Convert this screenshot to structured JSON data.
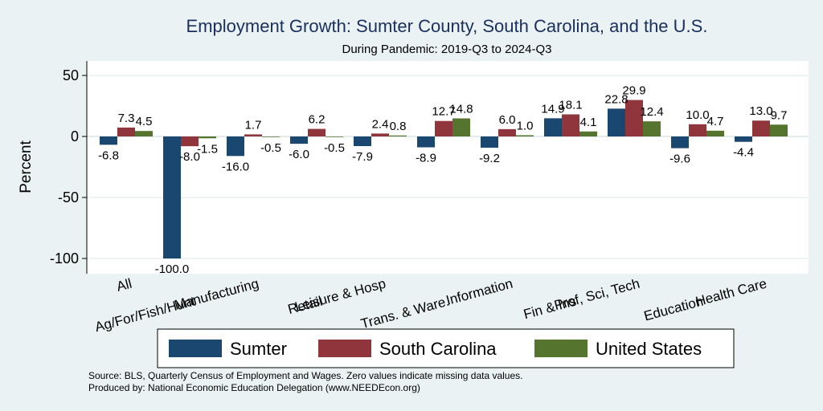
{
  "chart_data": {
    "type": "bar",
    "title": "Employment Growth: Sumter County, South Carolina, and the U.S.",
    "subtitle": "During Pandemic: 2019-Q3 to 2024-Q3",
    "ylabel": "Percent",
    "ylim": [
      -110,
      60
    ],
    "yticks": [
      50,
      0,
      -50,
      -100
    ],
    "grid": true,
    "legend_position": "bottom",
    "categories": [
      "All",
      "Ag/For/Fish/Hunt",
      "Manufacturing",
      "Retail",
      "Leisure & Hosp",
      "Trans. & Ware.",
      "Information",
      "Fin & Ins",
      "Prof, Sci, Tech",
      "Education",
      "Health Care"
    ],
    "series": [
      {
        "name": "Sumter",
        "color": "#1a476f",
        "values": [
          -6.8,
          -100.0,
          -16.0,
          -6.0,
          -7.9,
          -8.9,
          -9.2,
          14.9,
          22.8,
          -9.6,
          -4.4
        ],
        "labels": [
          "-6.8",
          "-100.0",
          "-16.0",
          "-6.0",
          "-7.9",
          "-8.9",
          "-9.2",
          "14.9",
          "22.8",
          "-9.6",
          "-4.4"
        ]
      },
      {
        "name": "South Carolina",
        "color": "#90353b",
        "values": [
          7.3,
          -8.0,
          1.7,
          6.2,
          2.4,
          12.7,
          6.0,
          18.1,
          29.9,
          10.0,
          13.0
        ],
        "labels": [
          "7.3",
          "-8.0",
          "1.7",
          "6.2",
          "2.4",
          "12.7",
          "6.0",
          "18.1",
          "29.9",
          "10.0",
          "13.0"
        ]
      },
      {
        "name": "United States",
        "color": "#55752f",
        "values": [
          4.5,
          -1.5,
          -0.5,
          -0.5,
          0.8,
          14.8,
          1.0,
          4.1,
          12.4,
          4.7,
          9.7
        ],
        "labels": [
          "4.5",
          "-1.5",
          "-0.5",
          "-0.5",
          "0.8",
          "14.8",
          "1.0",
          "4.1",
          "12.4",
          "4.7",
          "9.7"
        ]
      }
    ]
  },
  "notes": {
    "source": "Source: BLS, Quarterly Census of Employment and Wages. Zero values indicate missing data values.",
    "produced_by": "Produced by: National Economic Education Delegation (www.NEEDEcon.org)"
  }
}
